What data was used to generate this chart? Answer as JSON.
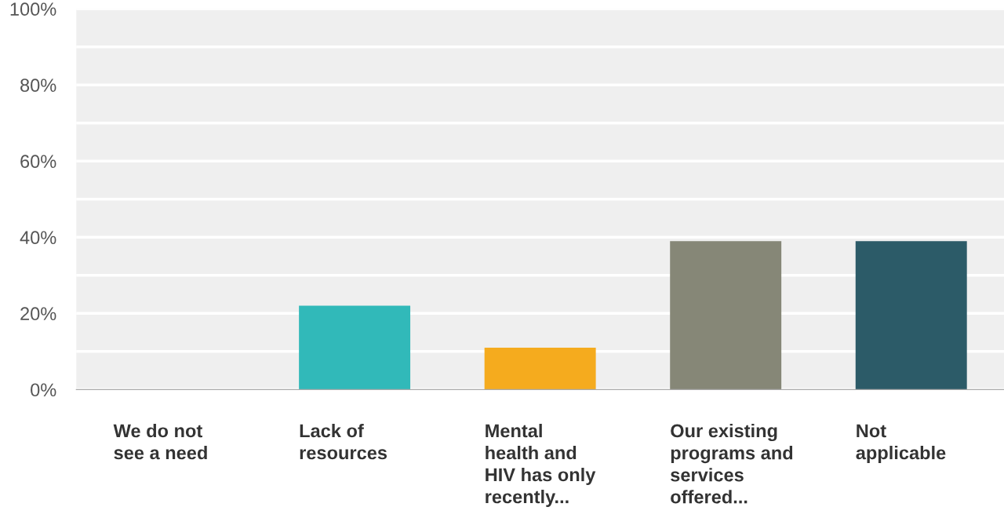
{
  "chart_data": {
    "type": "bar",
    "categories": [
      "We do not\nsee a need",
      "Lack of\nresources",
      "Mental\nhealth and\nHIV has only\nrecently...",
      "Our existing\nprograms and\nservices\noffered...",
      "Not\napplicable"
    ],
    "values": [
      0,
      22,
      11,
      39,
      39
    ],
    "colors": [
      "#3a86c8",
      "#31b9b9",
      "#f5ab1e",
      "#868777",
      "#2c5b68"
    ],
    "ylim": [
      0,
      100
    ],
    "yticks": [
      {
        "value": 0,
        "label": "0%"
      },
      {
        "value": 10,
        "label": null
      },
      {
        "value": 20,
        "label": "20%"
      },
      {
        "value": 30,
        "label": null
      },
      {
        "value": 40,
        "label": "40%"
      },
      {
        "value": 50,
        "label": null
      },
      {
        "value": 60,
        "label": "60%"
      },
      {
        "value": 70,
        "label": null
      },
      {
        "value": 80,
        "label": "80%"
      },
      {
        "value": 90,
        "label": null
      },
      {
        "value": 100,
        "label": "100%"
      }
    ],
    "grid": "y"
  }
}
